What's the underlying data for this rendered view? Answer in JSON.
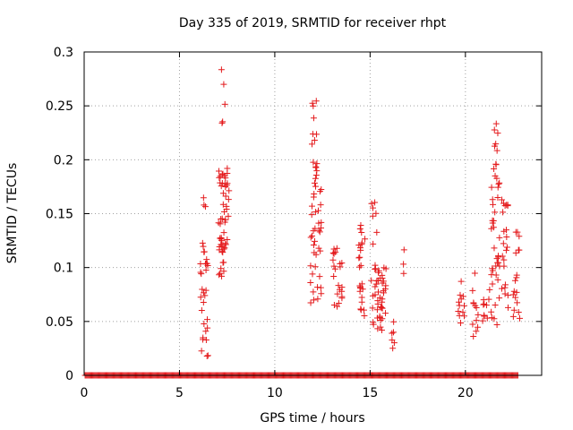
{
  "chart_data": {
    "type": "scatter",
    "title": "Day 335 of 2019, SRMTID for receiver rhpt",
    "xlabel": "GPS time / hours",
    "ylabel": "SRMTID / TECUs",
    "xlim": [
      0,
      24
    ],
    "ylim": [
      0,
      0.3
    ],
    "grid": true,
    "marker": "+",
    "colors": {
      "series": "#e41a1c",
      "grid": "#a0a0a0",
      "axis": "#000000"
    },
    "x_ticks": [
      {
        "value": 0,
        "label": "0"
      },
      {
        "value": 5,
        "label": "5"
      },
      {
        "value": 10,
        "label": "10"
      },
      {
        "value": 15,
        "label": "15"
      },
      {
        "value": 20,
        "label": "20"
      }
    ],
    "y_ticks": [
      {
        "value": 0,
        "label": "0"
      },
      {
        "value": 0.05,
        "label": "0.05"
      },
      {
        "value": 0.1,
        "label": "0.1"
      },
      {
        "value": 0.15,
        "label": "0.15"
      },
      {
        "value": 0.2,
        "label": "0.2"
      },
      {
        "value": 0.25,
        "label": "0.25"
      },
      {
        "value": 0.3,
        "label": "0.3"
      }
    ],
    "series": [
      {
        "name": "SRMTID",
        "baseline": {
          "y": 0,
          "x_start": 0.05,
          "x_end": 22.75,
          "step": 0.05
        },
        "clusters": [
          {
            "x": [
              6.1,
              6.5
            ],
            "y": [
              0.017,
              0.125
            ],
            "n": 30
          },
          {
            "x": [
              6.2,
              6.4
            ],
            "y": [
              0.15,
              0.168
            ],
            "n": 3
          },
          {
            "x": [
              7.05,
              7.6
            ],
            "y": [
              0.088,
              0.2
            ],
            "n": 55
          },
          {
            "x": [
              7.15,
              7.4
            ],
            "y": [
              0.22,
              0.284
            ],
            "n": 5
          },
          {
            "x": [
              11.85,
              12.45
            ],
            "y": [
              0.063,
              0.2
            ],
            "n": 45
          },
          {
            "x": [
              11.95,
              12.25
            ],
            "y": [
              0.205,
              0.266
            ],
            "n": 8
          },
          {
            "x": [
              13.05,
              13.55
            ],
            "y": [
              0.062,
              0.118
            ],
            "n": 22
          },
          {
            "x": [
              14.4,
              14.75
            ],
            "y": [
              0.055,
              0.153
            ],
            "n": 25
          },
          {
            "x": [
              15.05,
              15.35
            ],
            "y": [
              0.045,
              0.161
            ],
            "n": 18
          },
          {
            "x": [
              15.35,
              15.85
            ],
            "y": [
              0.04,
              0.1
            ],
            "n": 35
          },
          {
            "x": [
              16.1,
              16.35
            ],
            "y": [
              0.022,
              0.056
            ],
            "n": 6
          },
          {
            "x": [
              16.7,
              16.8
            ],
            "y": [
              0.08,
              0.118
            ],
            "n": 3
          },
          {
            "x": [
              19.6,
              19.95
            ],
            "y": [
              0.033,
              0.103
            ],
            "n": 12
          },
          {
            "x": [
              20.35,
              20.7
            ],
            "y": [
              0.036,
              0.095
            ],
            "n": 12
          },
          {
            "x": [
              20.9,
              21.3
            ],
            "y": [
              0.045,
              0.08
            ],
            "n": 10
          },
          {
            "x": [
              21.35,
              21.8
            ],
            "y": [
              0.045,
              0.21
            ],
            "n": 40
          },
          {
            "x": [
              21.5,
              21.75
            ],
            "y": [
              0.21,
              0.246
            ],
            "n": 5
          },
          {
            "x": [
              21.9,
              22.25
            ],
            "y": [
              0.06,
              0.165
            ],
            "n": 22
          },
          {
            "x": [
              22.5,
              22.85
            ],
            "y": [
              0.048,
              0.133
            ],
            "n": 18
          }
        ]
      }
    ]
  }
}
